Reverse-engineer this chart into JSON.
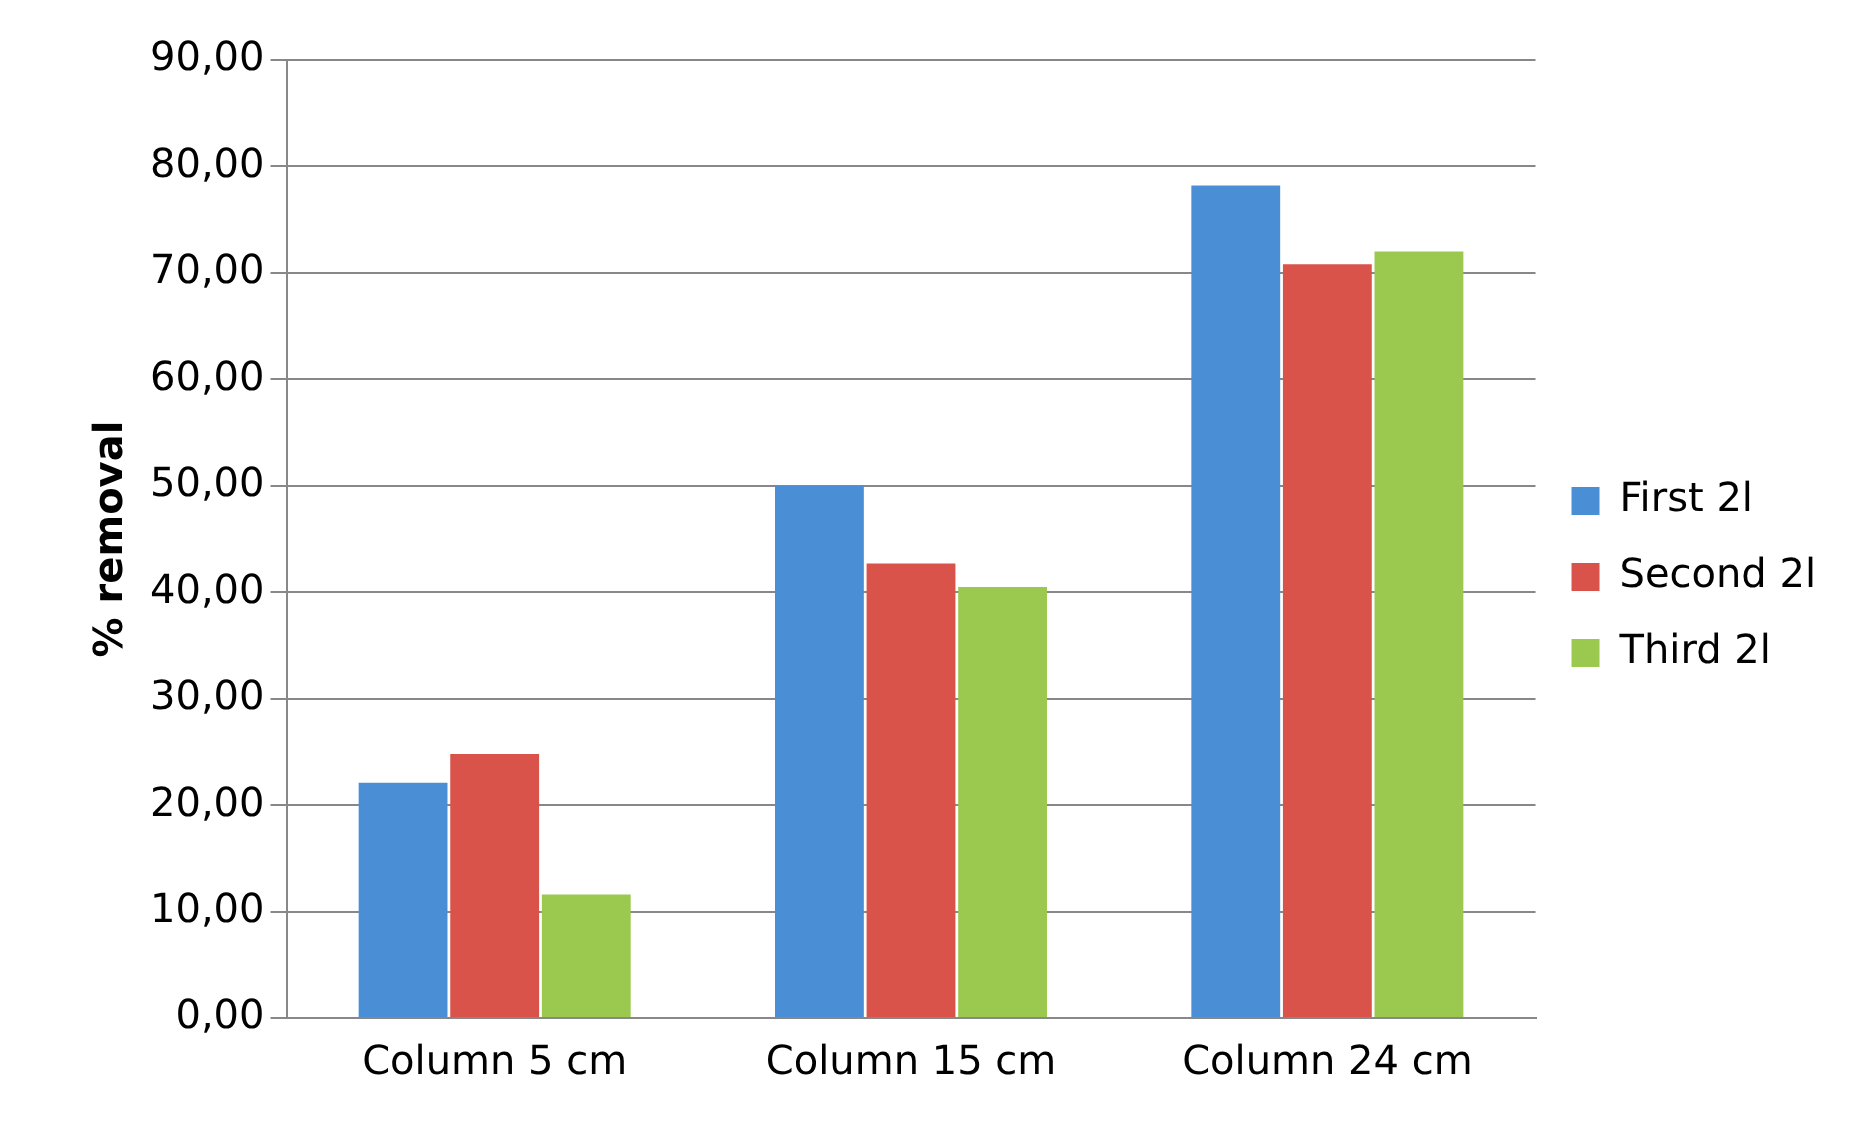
{
  "chart_data": {
    "type": "bar",
    "ylabel": "% removal",
    "categories": [
      "Column 5 cm",
      "Column 15 cm",
      "Column 24 cm"
    ],
    "series": [
      {
        "name": "First 2l",
        "color": "#4a8fd6",
        "values": [
          22.1,
          50.0,
          78.2
        ]
      },
      {
        "name": "Second 2l",
        "color": "#d9534a",
        "values": [
          24.8,
          42.7,
          70.8
        ]
      },
      {
        "name": "Third 2l",
        "color": "#9bc94f",
        "values": [
          11.6,
          40.5,
          72.0
        ]
      }
    ],
    "ylim": [
      0,
      90
    ],
    "yticks": [
      {
        "value": 0,
        "label": "0,00"
      },
      {
        "value": 10,
        "label": "10,00"
      },
      {
        "value": 20,
        "label": "20,00"
      },
      {
        "value": 30,
        "label": "30,00"
      },
      {
        "value": 40,
        "label": "40,00"
      },
      {
        "value": 50,
        "label": "50,00"
      },
      {
        "value": 60,
        "label": "60,00"
      },
      {
        "value": 70,
        "label": "70,00"
      },
      {
        "value": 80,
        "label": "80,00"
      },
      {
        "value": 90,
        "label": "90,00"
      }
    ],
    "grid": "y",
    "legend": "right"
  }
}
